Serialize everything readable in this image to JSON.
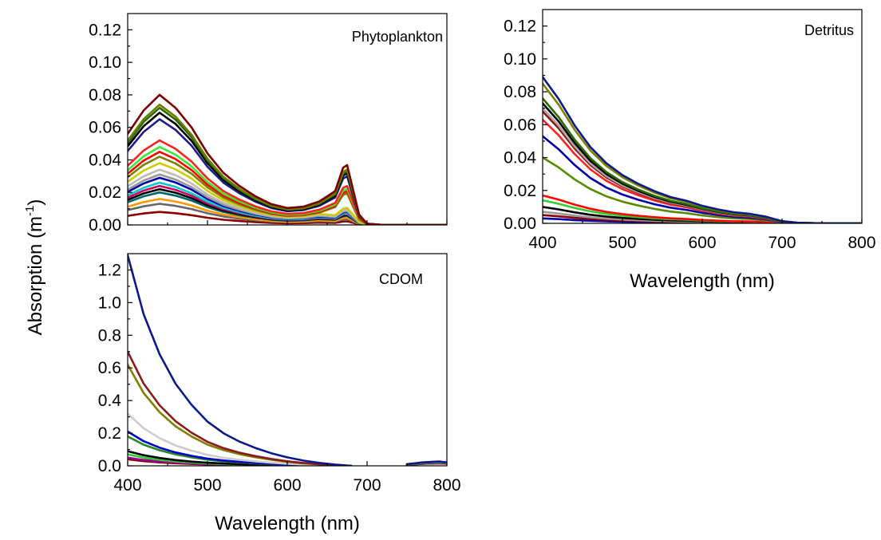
{
  "figure": {
    "ylabel_prefix": "Absorption (m",
    "ylabel_sup": "-1",
    "ylabel_suffix": ")"
  },
  "chart_data": [
    {
      "id": "phyto",
      "type": "line",
      "title": "Phytoplankton",
      "xlabel": "",
      "xlim": [
        400,
        800
      ],
      "ylim": [
        0,
        0.13
      ],
      "xticks": [],
      "yticks": [
        "0.00",
        "0.02",
        "0.04",
        "0.06",
        "0.08",
        "0.10",
        "0.12"
      ],
      "ytick_values": [
        0,
        0.02,
        0.04,
        0.06,
        0.08,
        0.1,
        0.12
      ],
      "x": [
        400,
        420,
        440,
        460,
        480,
        500,
        520,
        540,
        560,
        580,
        600,
        620,
        640,
        660,
        670,
        675,
        690,
        700,
        720,
        800
      ],
      "shape": [
        0.7,
        0.88,
        1.0,
        0.9,
        0.75,
        0.55,
        0.4,
        0.3,
        0.22,
        0.16,
        0.13,
        0.14,
        0.18,
        0.26,
        0.44,
        0.46,
        0.08,
        0.01,
        0.0,
        0.0
      ],
      "series": [
        {
          "color": "#7b0000",
          "peak": 0.08
        },
        {
          "color": "#6b7d00",
          "peak": 0.074
        },
        {
          "color": "#2a6a00",
          "peak": 0.072
        },
        {
          "color": "#000000",
          "peak": 0.069
        },
        {
          "color": "#1c1c8c",
          "peak": 0.065
        },
        {
          "color": "#ff2020",
          "peak": 0.052
        },
        {
          "color": "#33ee33",
          "peak": 0.048
        },
        {
          "color": "#ff0000",
          "peak": 0.045
        },
        {
          "color": "#7f7f00",
          "peak": 0.042
        },
        {
          "color": "#cccc00",
          "peak": 0.038
        },
        {
          "color": "#bbbbbb",
          "peak": 0.034
        },
        {
          "color": "#999999",
          "peak": 0.031
        },
        {
          "color": "#0000aa",
          "peak": 0.029
        },
        {
          "color": "#00cccc",
          "peak": 0.026
        },
        {
          "color": "#cc0066",
          "peak": 0.024
        },
        {
          "color": "#000000",
          "peak": 0.022
        },
        {
          "color": "#006666",
          "peak": 0.02
        },
        {
          "color": "#ff9900",
          "peak": 0.016
        },
        {
          "color": "#666666",
          "peak": 0.013
        },
        {
          "color": "#8b0000",
          "peak": 0.008
        }
      ]
    },
    {
      "id": "detritus",
      "type": "line",
      "title": "Detritus",
      "xlabel": "Wavelength (nm)",
      "xlim": [
        400,
        800
      ],
      "ylim": [
        0,
        0.13
      ],
      "xticks": [
        "400",
        "500",
        "600",
        "700",
        "800"
      ],
      "xtick_values": [
        400,
        500,
        600,
        700,
        800
      ],
      "yticks": [
        "0.00",
        "0.02",
        "0.04",
        "0.06",
        "0.08",
        "0.10",
        "0.12"
      ],
      "ytick_values": [
        0,
        0.02,
        0.04,
        0.06,
        0.08,
        0.1,
        0.12
      ],
      "x": [
        400,
        420,
        440,
        460,
        480,
        500,
        520,
        540,
        560,
        580,
        600,
        620,
        640,
        660,
        680,
        700,
        720,
        750,
        800
      ],
      "shape": [
        1.0,
        0.85,
        0.67,
        0.52,
        0.41,
        0.33,
        0.27,
        0.22,
        0.18,
        0.155,
        0.12,
        0.095,
        0.075,
        0.065,
        0.045,
        0.015,
        0.004,
        0.0,
        0.0
      ],
      "series": [
        {
          "color": "#0b1a8a",
          "start": 0.089
        },
        {
          "color": "#7f7f00",
          "start": 0.085
        },
        {
          "color": "#2a6a00",
          "start": 0.076
        },
        {
          "color": "#000000",
          "start": 0.073
        },
        {
          "color": "#aaaaaa",
          "start": 0.07
        },
        {
          "color": "#8b1a1a",
          "start": 0.068
        },
        {
          "color": "#ff2020",
          "start": 0.063
        },
        {
          "color": "#0000aa",
          "start": 0.053
        },
        {
          "color": "#5a8a00",
          "start": 0.04
        },
        {
          "color": "#ff0000",
          "start": 0.017
        },
        {
          "color": "#33cc33",
          "start": 0.014
        },
        {
          "color": "#000000",
          "start": 0.01
        },
        {
          "color": "#999999",
          "start": 0.007
        },
        {
          "color": "#8b0000",
          "start": 0.005
        },
        {
          "color": "#0000aa",
          "start": 0.003
        }
      ]
    },
    {
      "id": "cdom",
      "type": "line",
      "title": "CDOM",
      "xlabel": "Wavelength (nm)",
      "xlim": [
        400,
        800
      ],
      "ylim": [
        0,
        1.3
      ],
      "xticks": [
        "400",
        "500",
        "600",
        "700",
        "800"
      ],
      "xtick_values": [
        400,
        500,
        600,
        700,
        800
      ],
      "yticks": [
        "0.0",
        "0.2",
        "0.4",
        "0.6",
        "0.8",
        "1.0",
        "1.2"
      ],
      "ytick_values": [
        0,
        0.2,
        0.4,
        0.6,
        0.8,
        1.0,
        1.2
      ],
      "x": [
        400,
        420,
        440,
        460,
        480,
        500,
        520,
        540,
        560,
        580,
        600,
        620,
        640,
        660,
        680
      ],
      "shape": [
        1.0,
        0.72,
        0.53,
        0.39,
        0.29,
        0.21,
        0.155,
        0.115,
        0.085,
        0.06,
        0.04,
        0.025,
        0.014,
        0.006,
        0.0
      ],
      "tail_x": [
        750,
        770,
        790,
        800
      ],
      "tail_y": [
        0.01,
        0.02,
        0.025,
        0.02
      ],
      "series": [
        {
          "color": "#0b1a8a",
          "start": 1.29
        },
        {
          "color": "#8b1a1a",
          "start": 0.7
        },
        {
          "color": "#7f7f00",
          "start": 0.62
        },
        {
          "color": "#cccccc",
          "start": 0.32
        },
        {
          "color": "#0000cc",
          "start": 0.21
        },
        {
          "color": "#228b22",
          "start": 0.18
        },
        {
          "color": "#000000",
          "start": 0.09
        },
        {
          "color": "#33cc33",
          "start": 0.07
        },
        {
          "color": "#990099",
          "start": 0.05
        },
        {
          "color": "#8b0000",
          "start": 0.04
        }
      ]
    }
  ]
}
